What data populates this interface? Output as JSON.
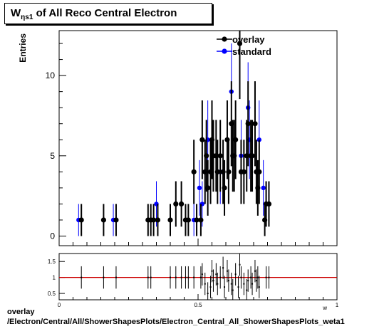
{
  "title": {
    "main": "W",
    "subscript": "ηs1",
    "rest": " of All Reco Central Electron"
  },
  "footer": {
    "line1": "overlay",
    "line2": "/Electron/Central/All/ShowerShapesPlots/Electron_Central_All_ShowerShapesPlots_weta1"
  },
  "colors": {
    "overlay": "#000000",
    "standard": "#0000ff",
    "ratio_line": "#cc0000"
  },
  "chart_data": [
    {
      "type": "scatter",
      "ylabel": "Entries",
      "xlim": [
        0,
        1
      ],
      "ylim": [
        -0.6,
        12.8
      ],
      "y_ticks": [
        0,
        5,
        10
      ],
      "x_ticks": [],
      "legend": {
        "placement": "top-right",
        "entries": [
          "overlay",
          "standard"
        ]
      },
      "grid": false,
      "series": [
        {
          "name": "overlay",
          "error": "sqrt",
          "points": [
            [
              0.08,
              1
            ],
            [
              0.16,
              1
            ],
            [
              0.205,
              1
            ],
            [
              0.32,
              1
            ],
            [
              0.33,
              1
            ],
            [
              0.34,
              1
            ],
            [
              0.355,
              1
            ],
            [
              0.4,
              1
            ],
            [
              0.42,
              2
            ],
            [
              0.44,
              2
            ],
            [
              0.455,
              1
            ],
            [
              0.465,
              1
            ],
            [
              0.485,
              4
            ],
            [
              0.495,
              1
            ],
            [
              0.51,
              1
            ],
            [
              0.515,
              6
            ],
            [
              0.525,
              4
            ],
            [
              0.53,
              5
            ],
            [
              0.535,
              3
            ],
            [
              0.545,
              4
            ],
            [
              0.55,
              6
            ],
            [
              0.555,
              5
            ],
            [
              0.565,
              5
            ],
            [
              0.57,
              4
            ],
            [
              0.58,
              5
            ],
            [
              0.59,
              4
            ],
            [
              0.595,
              3
            ],
            [
              0.605,
              6
            ],
            [
              0.61,
              4
            ],
            [
              0.62,
              7
            ],
            [
              0.625,
              5
            ],
            [
              0.63,
              5
            ],
            [
              0.635,
              6
            ],
            [
              0.65,
              12
            ],
            [
              0.655,
              4
            ],
            [
              0.665,
              4
            ],
            [
              0.675,
              5
            ],
            [
              0.68,
              7
            ],
            [
              0.69,
              5
            ],
            [
              0.695,
              5
            ],
            [
              0.705,
              7
            ],
            [
              0.71,
              4
            ],
            [
              0.715,
              3
            ],
            [
              0.72,
              4
            ],
            [
              0.74,
              1
            ],
            [
              0.745,
              2
            ],
            [
              0.755,
              2
            ]
          ]
        },
        {
          "name": "standard",
          "error": "sqrt",
          "points": [
            [
              0.07,
              1
            ],
            [
              0.195,
              1
            ],
            [
              0.35,
              2
            ],
            [
              0.42,
              2
            ],
            [
              0.485,
              1
            ],
            [
              0.505,
              3
            ],
            [
              0.515,
              2
            ],
            [
              0.535,
              6
            ],
            [
              0.545,
              4
            ],
            [
              0.58,
              4
            ],
            [
              0.62,
              9
            ],
            [
              0.655,
              5
            ],
            [
              0.68,
              8
            ],
            [
              0.685,
              6
            ],
            [
              0.72,
              6
            ],
            [
              0.735,
              3
            ],
            [
              0.745,
              2
            ]
          ]
        }
      ]
    },
    {
      "type": "scatter",
      "title": "",
      "xlabel": "w",
      "xlim": [
        0,
        1
      ],
      "ylim": [
        0.3,
        1.75
      ],
      "y_ticks": [
        0.5,
        1,
        1.5
      ],
      "x_ticks": [
        0,
        0.5,
        1
      ],
      "reference_line": 1,
      "series": [
        {
          "name": "ratio",
          "points": [
            [
              0.08,
              1.0
            ],
            [
              0.16,
              1.0
            ],
            [
              0.205,
              1.0
            ],
            [
              0.32,
              1.0
            ],
            [
              0.33,
              1.0
            ],
            [
              0.4,
              1.0
            ],
            [
              0.42,
              1.0
            ],
            [
              0.44,
              1.0
            ],
            [
              0.455,
              1.0
            ],
            [
              0.465,
              1.0
            ],
            [
              0.485,
              1.0
            ],
            [
              0.51,
              1.0
            ],
            [
              0.515,
              1.1
            ],
            [
              0.525,
              0.8
            ],
            [
              0.535,
              0.5
            ],
            [
              0.545,
              0.7
            ],
            [
              0.55,
              1.2
            ],
            [
              0.555,
              0.9
            ],
            [
              0.565,
              1.1
            ],
            [
              0.57,
              0.8
            ],
            [
              0.58,
              1.0
            ],
            [
              0.59,
              1.3
            ],
            [
              0.595,
              0.7
            ],
            [
              0.605,
              1.2
            ],
            [
              0.61,
              0.9
            ],
            [
              0.62,
              0.8
            ],
            [
              0.625,
              0.6
            ],
            [
              0.635,
              1.1
            ],
            [
              0.645,
              0.7
            ],
            [
              0.65,
              1.4
            ],
            [
              0.655,
              1.0
            ],
            [
              0.665,
              0.8
            ],
            [
              0.675,
              0.6
            ],
            [
              0.68,
              0.9
            ],
            [
              0.69,
              1.0
            ],
            [
              0.695,
              0.8
            ],
            [
              0.705,
              1.2
            ],
            [
              0.71,
              0.9
            ],
            [
              0.715,
              1.0
            ],
            [
              0.72,
              0.7
            ],
            [
              0.745,
              1.0
            ],
            [
              0.755,
              1.0
            ]
          ]
        }
      ]
    }
  ]
}
